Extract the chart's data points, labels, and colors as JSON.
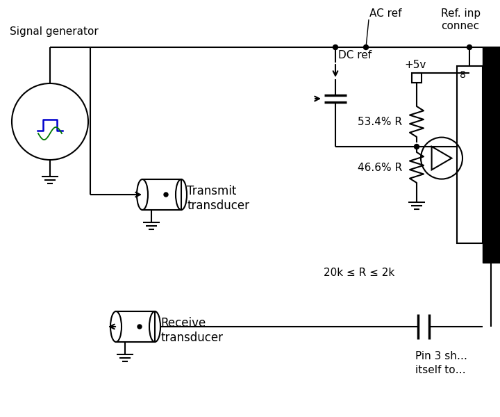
{
  "bg_color": "#ffffff",
  "line_color": "#000000",
  "blue_color": "#0000cc",
  "green_color": "#007700",
  "text_color": "#000000",
  "figsize": [
    7.2,
    6.0
  ],
  "dpi": 100,
  "labels": {
    "signal_gen": "Signal generator",
    "transmit": "Transmit\ntransducer",
    "receive": "Receive\ntransducer",
    "ac_ref": "AC ref",
    "dc_ref": "DC ref",
    "plus5v": "+5v",
    "r534": "53.4% R",
    "r466": "46.6% R",
    "range": "20k ≤ R ≤ 2k",
    "ref_inp": "Ref. inp",
    "connec": "connec",
    "pin3": "Pin 3 sh…",
    "itself": "itself to…",
    "num8": "8"
  }
}
